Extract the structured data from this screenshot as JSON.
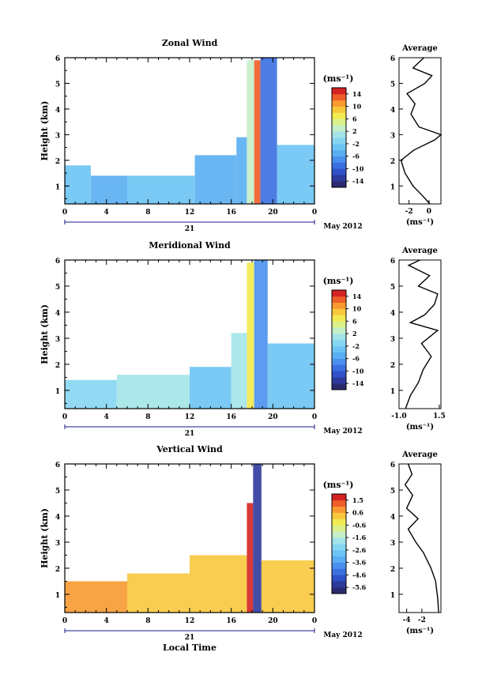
{
  "figure": {
    "date_label": "May 2012",
    "day_label": "21",
    "xlabel_bottom": "Local Time",
    "unit_label": "(ms⁻¹)"
  },
  "chart_data": [
    {
      "type": "heatmap",
      "title": "Zonal Wind",
      "ylabel": "Height (km)",
      "xlim": [
        0,
        24
      ],
      "ylim": [
        0.3,
        6
      ],
      "xticks": [
        "0",
        "4",
        "8",
        "12",
        "16",
        "20",
        "0"
      ],
      "yticks": [
        "1",
        "2",
        "3",
        "4",
        "5",
        "6"
      ],
      "colorbar": {
        "ticks": [
          "14",
          "10",
          "6",
          "2",
          "-2",
          "-6",
          "-10",
          "-14"
        ],
        "range": [
          -16,
          16
        ],
        "colors": [
          "#2a2a70",
          "#2c3a9c",
          "#2f52c8",
          "#3a6fe0",
          "#4a90ee",
          "#5aaef2",
          "#6cc4f4",
          "#86d6f2",
          "#a3e4e8",
          "#c4eec8",
          "#dcf08a",
          "#f2ea50",
          "#f8c83c",
          "#f89a30",
          "#ee5e28",
          "#d42222"
        ]
      },
      "regions": [
        {
          "x0": 0,
          "x1": 2.5,
          "y0": 0.3,
          "y1": 1.8,
          "v": -4
        },
        {
          "x0": 2.5,
          "x1": 6,
          "y0": 0.3,
          "y1": 1.4,
          "v": -5
        },
        {
          "x0": 6,
          "x1": 12.5,
          "y0": 0.3,
          "y1": 1.4,
          "v": -4
        },
        {
          "x0": 12.5,
          "x1": 16.5,
          "y0": 0.3,
          "y1": 2.2,
          "v": -5
        },
        {
          "x0": 16.5,
          "x1": 17.5,
          "y0": 0.3,
          "y1": 2.9,
          "v": -6
        },
        {
          "x0": 17.5,
          "x1": 18.2,
          "y0": 0.3,
          "y1": 5.9,
          "v": 2
        },
        {
          "x0": 18.2,
          "x1": 18.8,
          "y0": 0.3,
          "y1": 5.9,
          "v": 12
        },
        {
          "x0": 18.8,
          "x1": 20.4,
          "y0": 0.3,
          "y1": 6,
          "v": -9
        },
        {
          "x0": 20.4,
          "x1": 24,
          "y0": 0.3,
          "y1": 2.6,
          "v": -4
        }
      ],
      "average_profile": {
        "xticks": [
          "-2",
          "0"
        ],
        "xlim": [
          -3,
          1.2
        ],
        "heights": [
          0.3,
          0.6,
          1.0,
          1.5,
          2.0,
          2.4,
          2.8,
          3.0,
          3.3,
          3.8,
          4.2,
          4.6,
          5.0,
          5.3,
          5.6,
          6.0
        ],
        "values": [
          0.1,
          -0.6,
          -1.6,
          -2.4,
          -2.8,
          -1.5,
          0.6,
          1.2,
          -1.0,
          -1.8,
          -1.4,
          -2.2,
          -0.4,
          0.3,
          -1.6,
          -0.5
        ]
      }
    },
    {
      "type": "heatmap",
      "title": "Meridional Wind",
      "ylabel": "Height (km)",
      "xlim": [
        0,
        24
      ],
      "ylim": [
        0.3,
        6
      ],
      "xticks": [
        "0",
        "4",
        "8",
        "12",
        "16",
        "20",
        "0"
      ],
      "yticks": [
        "1",
        "2",
        "3",
        "4",
        "5",
        "6"
      ],
      "colorbar": {
        "ticks": [
          "14",
          "10",
          "6",
          "2",
          "-2",
          "-6",
          "-10",
          "-14"
        ],
        "range": [
          -16,
          16
        ],
        "colors": [
          "#2a2a70",
          "#2c3a9c",
          "#2f52c8",
          "#3a6fe0",
          "#4a90ee",
          "#5aaef2",
          "#6cc4f4",
          "#86d6f2",
          "#a3e4e8",
          "#c4eec8",
          "#dcf08a",
          "#f2ea50",
          "#f8c83c",
          "#f89a30",
          "#ee5e28",
          "#d42222"
        ]
      },
      "regions": [
        {
          "x0": 0,
          "x1": 5,
          "y0": 0.3,
          "y1": 1.4,
          "v": -2
        },
        {
          "x0": 5,
          "x1": 12,
          "y0": 0.3,
          "y1": 1.6,
          "v": 1
        },
        {
          "x0": 12,
          "x1": 16,
          "y0": 0.3,
          "y1": 1.9,
          "v": -3
        },
        {
          "x0": 16,
          "x1": 17.5,
          "y0": 0.3,
          "y1": 3.2,
          "v": 0
        },
        {
          "x0": 17.5,
          "x1": 18.2,
          "y0": 0.3,
          "y1": 5.9,
          "v": 6
        },
        {
          "x0": 18.2,
          "x1": 19.5,
          "y0": 0.3,
          "y1": 6,
          "v": -7
        },
        {
          "x0": 19.5,
          "x1": 24,
          "y0": 0.3,
          "y1": 2.8,
          "v": -3
        }
      ],
      "average_profile": {
        "xticks": [
          "-1.0",
          "1.5"
        ],
        "xlim": [
          -1.0,
          1.6
        ],
        "heights": [
          0.3,
          0.8,
          1.3,
          1.8,
          2.3,
          2.8,
          3.3,
          3.6,
          3.9,
          4.3,
          4.7,
          5.0,
          5.4,
          5.8,
          6.0
        ],
        "values": [
          -0.6,
          -0.3,
          0.2,
          0.5,
          1.0,
          0.4,
          1.4,
          -0.3,
          0.6,
          1.2,
          1.4,
          0.2,
          0.9,
          -0.4,
          0.3
        ]
      }
    },
    {
      "type": "heatmap",
      "title": "Vertical Wind",
      "ylabel": "Height (km)",
      "xlim": [
        0,
        24
      ],
      "ylim": [
        0.3,
        6
      ],
      "xticks": [
        "0",
        "4",
        "8",
        "12",
        "16",
        "20",
        "0"
      ],
      "yticks": [
        "1",
        "2",
        "3",
        "4",
        "5",
        "6"
      ],
      "colorbar": {
        "ticks": [
          "1.5",
          "0.6",
          "-0.6",
          "-1.6",
          "-2.6",
          "-3.6",
          "-4.6",
          "-5.6"
        ],
        "range": [
          -6,
          2
        ],
        "colors": [
          "#2a2a70",
          "#2c3a9c",
          "#2f52c8",
          "#3a6fe0",
          "#4a90ee",
          "#5aaef2",
          "#6cc4f4",
          "#86d6f2",
          "#a3e4e8",
          "#c4eec8",
          "#dcf08a",
          "#f2ea50",
          "#f8c83c",
          "#f89a30",
          "#ee5e28",
          "#d42222"
        ]
      },
      "regions": [
        {
          "x0": 0,
          "x1": 6,
          "y0": 0.3,
          "y1": 1.5,
          "v": 0.8
        },
        {
          "x0": 6,
          "x1": 12,
          "y0": 0.3,
          "y1": 1.8,
          "v": 0.4
        },
        {
          "x0": 12,
          "x1": 17.5,
          "y0": 0.3,
          "y1": 2.5,
          "v": 0.2
        },
        {
          "x0": 17.5,
          "x1": 18.1,
          "y0": 0.3,
          "y1": 4.5,
          "v": 1.6
        },
        {
          "x0": 18.1,
          "x1": 18.9,
          "y0": 0.3,
          "y1": 6,
          "v": -5.5
        },
        {
          "x0": 18.9,
          "x1": 24,
          "y0": 0.3,
          "y1": 2.3,
          "v": 0.3
        }
      ],
      "average_profile": {
        "xticks": [
          "-4",
          "-2"
        ],
        "xlim": [
          -5,
          0.5
        ],
        "heights": [
          0.3,
          0.8,
          1.5,
          2.0,
          2.6,
          3.0,
          3.5,
          3.9,
          4.3,
          4.8,
          5.2,
          5.6,
          6.0
        ],
        "values": [
          0.2,
          0.1,
          -0.2,
          -0.8,
          -1.8,
          -2.8,
          -3.8,
          -2.5,
          -4.0,
          -3.2,
          -4.2,
          -3.3,
          -3.8
        ]
      }
    }
  ]
}
